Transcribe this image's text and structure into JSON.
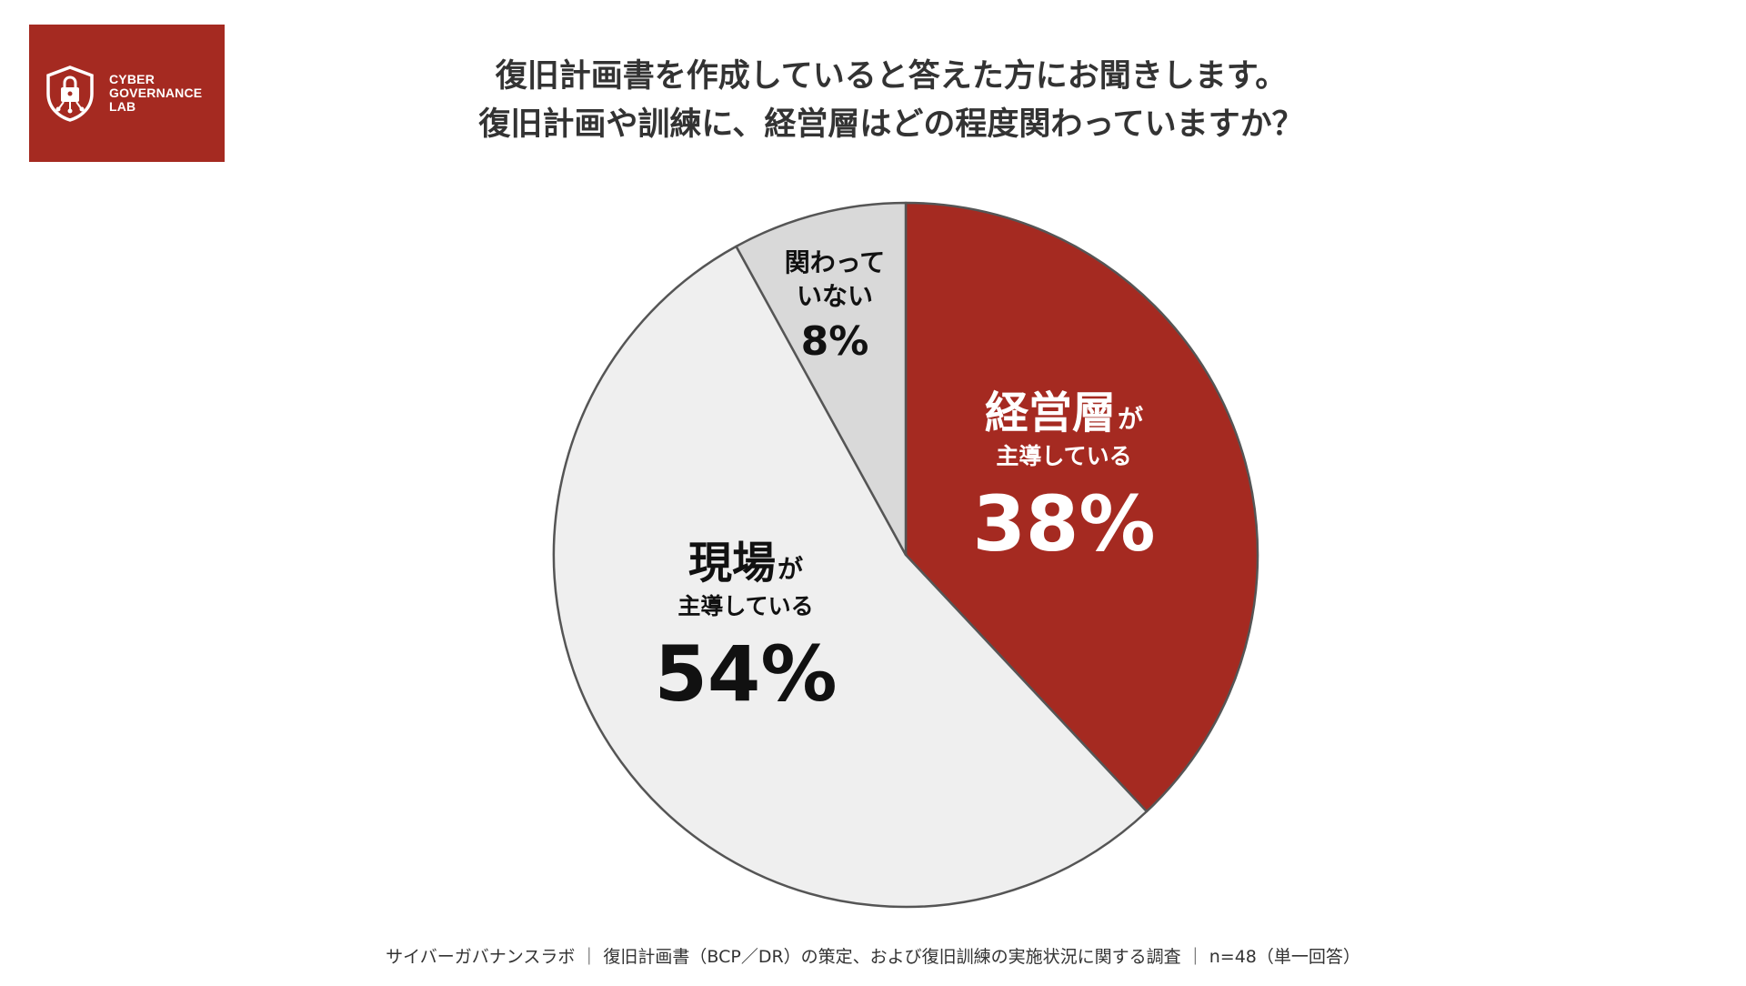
{
  "logo": {
    "lines": [
      "CYBER",
      "GOVERNANCE",
      "LAB"
    ],
    "icon": "shield-lock-icon",
    "background": "#a52a21"
  },
  "title": {
    "line1": "復旧計画書を作成していると答えた方にお聞きします。",
    "line2": "復旧計画や訓練に、経営層はどの程度関わっていますか？"
  },
  "chart_data": {
    "type": "pie",
    "slices": [
      {
        "label_main": "経営層",
        "label_particle": "が",
        "label_sub": "主導している",
        "value": 38,
        "value_label": "38%",
        "color": "#a52a21",
        "text_color": "#ffffff"
      },
      {
        "label_main": "現場",
        "label_particle": "が",
        "label_sub": "主導している",
        "value": 54,
        "value_label": "54%",
        "color": "#efefef",
        "text_color": "#111111"
      },
      {
        "label_main": "関わって",
        "label_particle": "",
        "label_sub": "いない",
        "value": 8,
        "value_label": "8%",
        "color": "#d9d9d9",
        "text_color": "#111111"
      }
    ],
    "start": "12 o'clock",
    "direction": "clockwise",
    "border_color": "#555555"
  },
  "footer": {
    "text": "サイバーガバナンスラボ ｜ 復旧計画書（BCP／DR）の策定、および復旧訓練の実施状況に関する調査 ｜ n=48（単一回答）"
  }
}
